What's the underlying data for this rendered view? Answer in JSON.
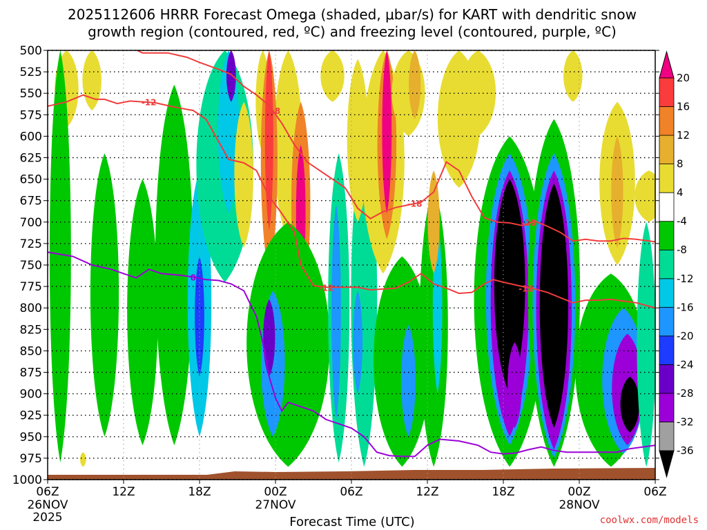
{
  "chart_data": {
    "type": "heatmap",
    "title_line1": "2025112606 HRRR Forecast Omega (shaded, μbar/s) for KART with dendritic snow",
    "title_line2": "growth region (contoured, red, ºC) and freezing level (contoured, purple, ºC)",
    "xlabel": "Forecast Time (UTC)",
    "credit": "coolwx.com/models",
    "ylim": [
      1000,
      500
    ],
    "xlim": [
      0,
      48
    ],
    "y_ticks": [
      500,
      525,
      550,
      575,
      600,
      625,
      650,
      675,
      700,
      725,
      750,
      775,
      800,
      825,
      850,
      875,
      900,
      925,
      950,
      975,
      1000
    ],
    "y_tick_labels": [
      "500",
      "525",
      "550",
      "575",
      "600",
      "625",
      "650",
      "675",
      "700",
      "725",
      "750",
      "775",
      "800",
      "825",
      "850",
      "875",
      "900",
      "925",
      "950",
      "975",
      "1000"
    ],
    "x_ticks": [
      {
        "hour": 0,
        "label": "06Z",
        "date": "26NOV",
        "year": "2025"
      },
      {
        "hour": 6,
        "label": "12Z",
        "date": "",
        "year": ""
      },
      {
        "hour": 12,
        "label": "18Z",
        "date": "",
        "year": ""
      },
      {
        "hour": 18,
        "label": "00Z",
        "date": "27NOV",
        "year": ""
      },
      {
        "hour": 24,
        "label": "06Z",
        "date": "",
        "year": ""
      },
      {
        "hour": 30,
        "label": "12Z",
        "date": "",
        "year": ""
      },
      {
        "hour": 36,
        "label": "18Z",
        "date": "",
        "year": ""
      },
      {
        "hour": 42,
        "label": "00Z",
        "date": "28NOV",
        "year": ""
      },
      {
        "hour": 48,
        "label": "06Z",
        "date": "",
        "year": ""
      }
    ],
    "colorbar": {
      "levels": [
        -36,
        -32,
        -28,
        -24,
        -20,
        -16,
        -12,
        -8,
        -4,
        4,
        8,
        12,
        16,
        20
      ],
      "tick_labels": [
        "-36",
        "-32",
        "-28",
        "-24",
        "-20",
        "-16",
        "-12",
        "-8",
        "-4",
        "4",
        "8",
        "12",
        "16",
        "20"
      ],
      "colors": [
        "#000000",
        "#a0a0a0",
        "#9b00d8",
        "#6a00c8",
        "#1e3cff",
        "#1e96ff",
        "#00c8e6",
        "#00dc96",
        "#00c800",
        "#ffffff",
        "#e8dc32",
        "#e6af2d",
        "#f08228",
        "#fa3c3c",
        "#f00082"
      ]
    },
    "omega_regions": [
      {
        "hour": 1.5,
        "p_top": 500,
        "p_bot": 590,
        "half_width": 1.0,
        "value": 6
      },
      {
        "hour": 3.5,
        "p_top": 500,
        "p_bot": 570,
        "half_width": 0.8,
        "value": 5
      },
      {
        "hour": 1.0,
        "p_top": 500,
        "p_bot": 980,
        "half_width": 0.9,
        "value": -6
      },
      {
        "hour": 4.5,
        "p_top": 620,
        "p_bot": 950,
        "half_width": 1.2,
        "value": -6
      },
      {
        "hour": 7.5,
        "p_top": 650,
        "p_bot": 960,
        "half_width": 1.3,
        "value": -6
      },
      {
        "hour": 10.0,
        "p_top": 540,
        "p_bot": 960,
        "half_width": 1.6,
        "value": -7
      },
      {
        "hour": 12.0,
        "p_top": 640,
        "p_bot": 950,
        "half_width": 1.0,
        "value": -14
      },
      {
        "hour": 12.0,
        "p_top": 740,
        "p_bot": 880,
        "half_width": 0.4,
        "value": -22
      },
      {
        "hour": 14.0,
        "p_top": 500,
        "p_bot": 770,
        "half_width": 2.4,
        "value": -9
      },
      {
        "hour": 14.3,
        "p_top": 500,
        "p_bot": 690,
        "half_width": 0.9,
        "value": -16
      },
      {
        "hour": 14.5,
        "p_top": 500,
        "p_bot": 560,
        "half_width": 0.4,
        "value": -26
      },
      {
        "hour": 15.5,
        "p_top": 560,
        "p_bot": 730,
        "half_width": 0.8,
        "value": 6
      },
      {
        "hour": 17.0,
        "p_top": 500,
        "p_bot": 620,
        "half_width": 0.6,
        "value": 6
      },
      {
        "hour": 19.0,
        "p_top": 500,
        "p_bot": 720,
        "half_width": 1.2,
        "value": 5
      },
      {
        "hour": 17.5,
        "p_top": 500,
        "p_bot": 760,
        "half_width": 0.7,
        "value": 12
      },
      {
        "hour": 17.5,
        "p_top": 500,
        "p_bot": 710,
        "half_width": 0.35,
        "value": 18
      },
      {
        "hour": 20.0,
        "p_top": 560,
        "p_bot": 800,
        "half_width": 0.8,
        "value": 12
      },
      {
        "hour": 20.0,
        "p_top": 610,
        "p_bot": 770,
        "half_width": 0.4,
        "value": 20
      },
      {
        "hour": 19.0,
        "p_top": 700,
        "p_bot": 985,
        "half_width": 3.5,
        "value": -7
      },
      {
        "hour": 17.8,
        "p_top": 780,
        "p_bot": 950,
        "half_width": 1.0,
        "value": -17
      },
      {
        "hour": 17.5,
        "p_top": 790,
        "p_bot": 880,
        "half_width": 0.5,
        "value": -26
      },
      {
        "hour": 23.0,
        "p_top": 620,
        "p_bot": 980,
        "half_width": 0.9,
        "value": -10
      },
      {
        "hour": 22.8,
        "p_top": 680,
        "p_bot": 930,
        "half_width": 0.4,
        "value": -18
      },
      {
        "hour": 25.0,
        "p_top": 600,
        "p_bot": 985,
        "half_width": 1.1,
        "value": -9
      },
      {
        "hour": 24.5,
        "p_top": 780,
        "p_bot": 900,
        "half_width": 0.4,
        "value": -20
      },
      {
        "hour": 24.5,
        "p_top": 510,
        "p_bot": 700,
        "half_width": 0.9,
        "value": 5
      },
      {
        "hour": 22.5,
        "p_top": 500,
        "p_bot": 560,
        "half_width": 1.0,
        "value": 5
      },
      {
        "hour": 26.5,
        "p_top": 500,
        "p_bot": 760,
        "half_width": 1.8,
        "value": 6
      },
      {
        "hour": 26.8,
        "p_top": 500,
        "p_bot": 720,
        "half_width": 0.8,
        "value": 12
      },
      {
        "hour": 26.8,
        "p_top": 500,
        "p_bot": 690,
        "half_width": 0.4,
        "value": 20
      },
      {
        "hour": 28.5,
        "p_top": 500,
        "p_bot": 600,
        "half_width": 1.4,
        "value": 6
      },
      {
        "hour": 29.0,
        "p_top": 500,
        "p_bot": 580,
        "half_width": 0.5,
        "value": 10
      },
      {
        "hour": 28.0,
        "p_top": 740,
        "p_bot": 985,
        "half_width": 2.4,
        "value": -8
      },
      {
        "hour": 28.5,
        "p_top": 820,
        "p_bot": 950,
        "half_width": 0.6,
        "value": -20
      },
      {
        "hour": 30.5,
        "p_top": 660,
        "p_bot": 985,
        "half_width": 1.2,
        "value": -8
      },
      {
        "hour": 30.8,
        "p_top": 700,
        "p_bot": 900,
        "half_width": 0.4,
        "value": -14
      },
      {
        "hour": 32.5,
        "p_top": 500,
        "p_bot": 660,
        "half_width": 1.8,
        "value": 5
      },
      {
        "hour": 30.5,
        "p_top": 640,
        "p_bot": 760,
        "half_width": 0.5,
        "value": 9
      },
      {
        "hour": 34.0,
        "p_top": 500,
        "p_bot": 600,
        "half_width": 1.5,
        "value": 5
      },
      {
        "hour": 36.5,
        "p_top": 600,
        "p_bot": 985,
        "half_width": 3.0,
        "value": -8
      },
      {
        "hour": 36.5,
        "p_top": 620,
        "p_bot": 960,
        "half_width": 2.0,
        "value": -18
      },
      {
        "hour": 36.5,
        "p_top": 640,
        "p_bot": 950,
        "half_width": 1.6,
        "value": -30
      },
      {
        "hour": 36.5,
        "p_top": 650,
        "p_bot": 900,
        "half_width": 1.3,
        "value": -38
      },
      {
        "hour": 36.9,
        "p_top": 840,
        "p_bot": 940,
        "half_width": 0.6,
        "value": -30
      },
      {
        "hour": 40.0,
        "p_top": 580,
        "p_bot": 985,
        "half_width": 2.2,
        "value": -8
      },
      {
        "hour": 40.0,
        "p_top": 620,
        "p_bot": 975,
        "half_width": 1.8,
        "value": -18
      },
      {
        "hour": 40.0,
        "p_top": 640,
        "p_bot": 965,
        "half_width": 1.5,
        "value": -30
      },
      {
        "hour": 40.0,
        "p_top": 655,
        "p_bot": 940,
        "half_width": 1.2,
        "value": -38
      },
      {
        "hour": 44.5,
        "p_top": 760,
        "p_bot": 985,
        "half_width": 3.0,
        "value": -8
      },
      {
        "hour": 45.5,
        "p_top": 800,
        "p_bot": 970,
        "half_width": 1.8,
        "value": -18
      },
      {
        "hour": 45.8,
        "p_top": 830,
        "p_bot": 960,
        "half_width": 1.3,
        "value": -30
      },
      {
        "hour": 46.0,
        "p_top": 880,
        "p_bot": 945,
        "half_width": 0.8,
        "value": -38
      },
      {
        "hour": 41.5,
        "p_top": 500,
        "p_bot": 560,
        "half_width": 0.8,
        "value": 5
      },
      {
        "hour": 45.0,
        "p_top": 560,
        "p_bot": 750,
        "half_width": 1.5,
        "value": 5
      },
      {
        "hour": 45.0,
        "p_top": 600,
        "p_bot": 730,
        "half_width": 0.5,
        "value": 10
      },
      {
        "hour": 47.5,
        "p_top": 640,
        "p_bot": 700,
        "half_width": 1.2,
        "value": 5
      },
      {
        "hour": 47.3,
        "p_top": 700,
        "p_bot": 985,
        "half_width": 0.8,
        "value": -10
      },
      {
        "hour": 2.8,
        "p_top": 968,
        "p_bot": 985,
        "half_width": 0.25,
        "value": 6
      }
    ],
    "red_contour_minus12": {
      "label": "-12",
      "points": [
        [
          0,
          565
        ],
        [
          1.5,
          560
        ],
        [
          2.8,
          552
        ],
        [
          3.8,
          557
        ],
        [
          4.5,
          557
        ],
        [
          5.5,
          562
        ],
        [
          6.5,
          559
        ],
        [
          7.5,
          560
        ],
        [
          8.5,
          561
        ],
        [
          10.0,
          566
        ],
        [
          11.5,
          570
        ],
        [
          12.5,
          580
        ],
        [
          13.5,
          606
        ],
        [
          14.3,
          627
        ],
        [
          15.5,
          631
        ],
        [
          16.5,
          640
        ],
        [
          17.5,
          670
        ],
        [
          18.5,
          690
        ],
        [
          19.5,
          712
        ],
        [
          20.0,
          750
        ],
        [
          21.0,
          774
        ],
        [
          22.0,
          776
        ],
        [
          23.0,
          776
        ],
        [
          24.5,
          776
        ],
        [
          25.5,
          779
        ],
        [
          26.5,
          778
        ],
        [
          27.5,
          777
        ],
        [
          28.5,
          770
        ],
        [
          29.5,
          760
        ],
        [
          30.5,
          772
        ],
        [
          31.5,
          777
        ],
        [
          32.5,
          783
        ],
        [
          33.5,
          782
        ],
        [
          34.5,
          772
        ],
        [
          35.2,
          767
        ],
        [
          36.0,
          770
        ],
        [
          37.5,
          775
        ],
        [
          38.5,
          778
        ],
        [
          39.5,
          782
        ],
        [
          40.5,
          788
        ],
        [
          41.5,
          794
        ],
        [
          42.5,
          791
        ],
        [
          43.5,
          791
        ],
        [
          44.5,
          790
        ],
        [
          45.5,
          792
        ],
        [
          46.5,
          794
        ],
        [
          48,
          800
        ]
      ],
      "label_hour": 8.0,
      "label_p": 560
    },
    "red_contour_minus18": {
      "label": "-18",
      "points": [
        [
          6.5,
          496
        ],
        [
          7.5,
          503
        ],
        [
          9.5,
          503
        ],
        [
          11.0,
          508
        ],
        [
          12.0,
          514
        ],
        [
          13.5,
          522
        ],
        [
          14.5,
          528
        ],
        [
          15.5,
          542
        ],
        [
          16.5,
          552
        ],
        [
          17.5,
          564
        ],
        [
          18.5,
          585
        ],
        [
          19.5,
          610
        ],
        [
          20.5,
          630
        ],
        [
          21.5,
          640
        ],
        [
          22.5,
          650
        ],
        [
          23.5,
          660
        ],
        [
          24.5,
          684
        ],
        [
          25.5,
          696
        ],
        [
          26.5,
          688
        ],
        [
          27.5,
          683
        ],
        [
          28.5,
          680
        ],
        [
          29.5,
          677
        ],
        [
          30.5,
          665
        ],
        [
          31.5,
          630
        ],
        [
          32.5,
          640
        ],
        [
          33.5,
          670
        ],
        [
          34.5,
          695
        ],
        [
          35.5,
          700
        ],
        [
          36.5,
          701
        ],
        [
          37.5,
          704
        ],
        [
          38.5,
          699
        ],
        [
          39.5,
          705
        ],
        [
          40.5,
          712
        ],
        [
          41.5,
          722
        ],
        [
          42.5,
          720
        ],
        [
          43.5,
          722
        ],
        [
          44.5,
          722
        ],
        [
          45.5,
          719
        ],
        [
          46.5,
          720
        ],
        [
          48,
          723
        ]
      ],
      "labels": [
        {
          "hour": 17.8,
          "p": 570
        },
        {
          "hour": 29.0,
          "p": 678
        },
        {
          "hour": 38.0,
          "p": 700
        }
      ]
    },
    "purple_contour_0": {
      "label": "0",
      "points": [
        [
          0,
          735
        ],
        [
          2.0,
          740
        ],
        [
          3.5,
          750
        ],
        [
          5.0,
          755
        ],
        [
          7.0,
          765
        ],
        [
          8.0,
          755
        ],
        [
          9.0,
          760
        ],
        [
          10.5,
          762
        ],
        [
          11.5,
          764
        ],
        [
          12.5,
          767
        ],
        [
          13.5,
          768
        ],
        [
          14.5,
          772
        ],
        [
          15.5,
          780
        ],
        [
          16.0,
          795
        ],
        [
          16.5,
          810
        ],
        [
          17.0,
          840
        ],
        [
          17.5,
          880
        ],
        [
          18.0,
          905
        ],
        [
          18.5,
          920
        ],
        [
          19.0,
          910
        ],
        [
          20.0,
          915
        ],
        [
          21.0,
          920
        ],
        [
          22.0,
          930
        ],
        [
          23.0,
          935
        ],
        [
          24.0,
          940
        ],
        [
          25.0,
          950
        ],
        [
          26.0,
          968
        ],
        [
          27.0,
          972
        ],
        [
          28.0,
          973
        ],
        [
          29.0,
          973
        ],
        [
          30.0,
          960
        ],
        [
          31.0,
          953
        ],
        [
          32.5,
          955
        ],
        [
          34.0,
          960
        ],
        [
          35.0,
          968
        ],
        [
          36.0,
          970
        ],
        [
          37.0,
          969
        ],
        [
          38.0,
          965
        ],
        [
          39.0,
          962
        ],
        [
          40.0,
          966
        ],
        [
          41.0,
          968
        ],
        [
          42.0,
          968
        ],
        [
          43.0,
          968
        ],
        [
          44.0,
          968
        ],
        [
          45.0,
          968
        ],
        [
          46.0,
          964
        ],
        [
          47.0,
          962
        ],
        [
          48,
          960
        ]
      ],
      "label_hour": 11.5,
      "label_p": 764
    }
  }
}
